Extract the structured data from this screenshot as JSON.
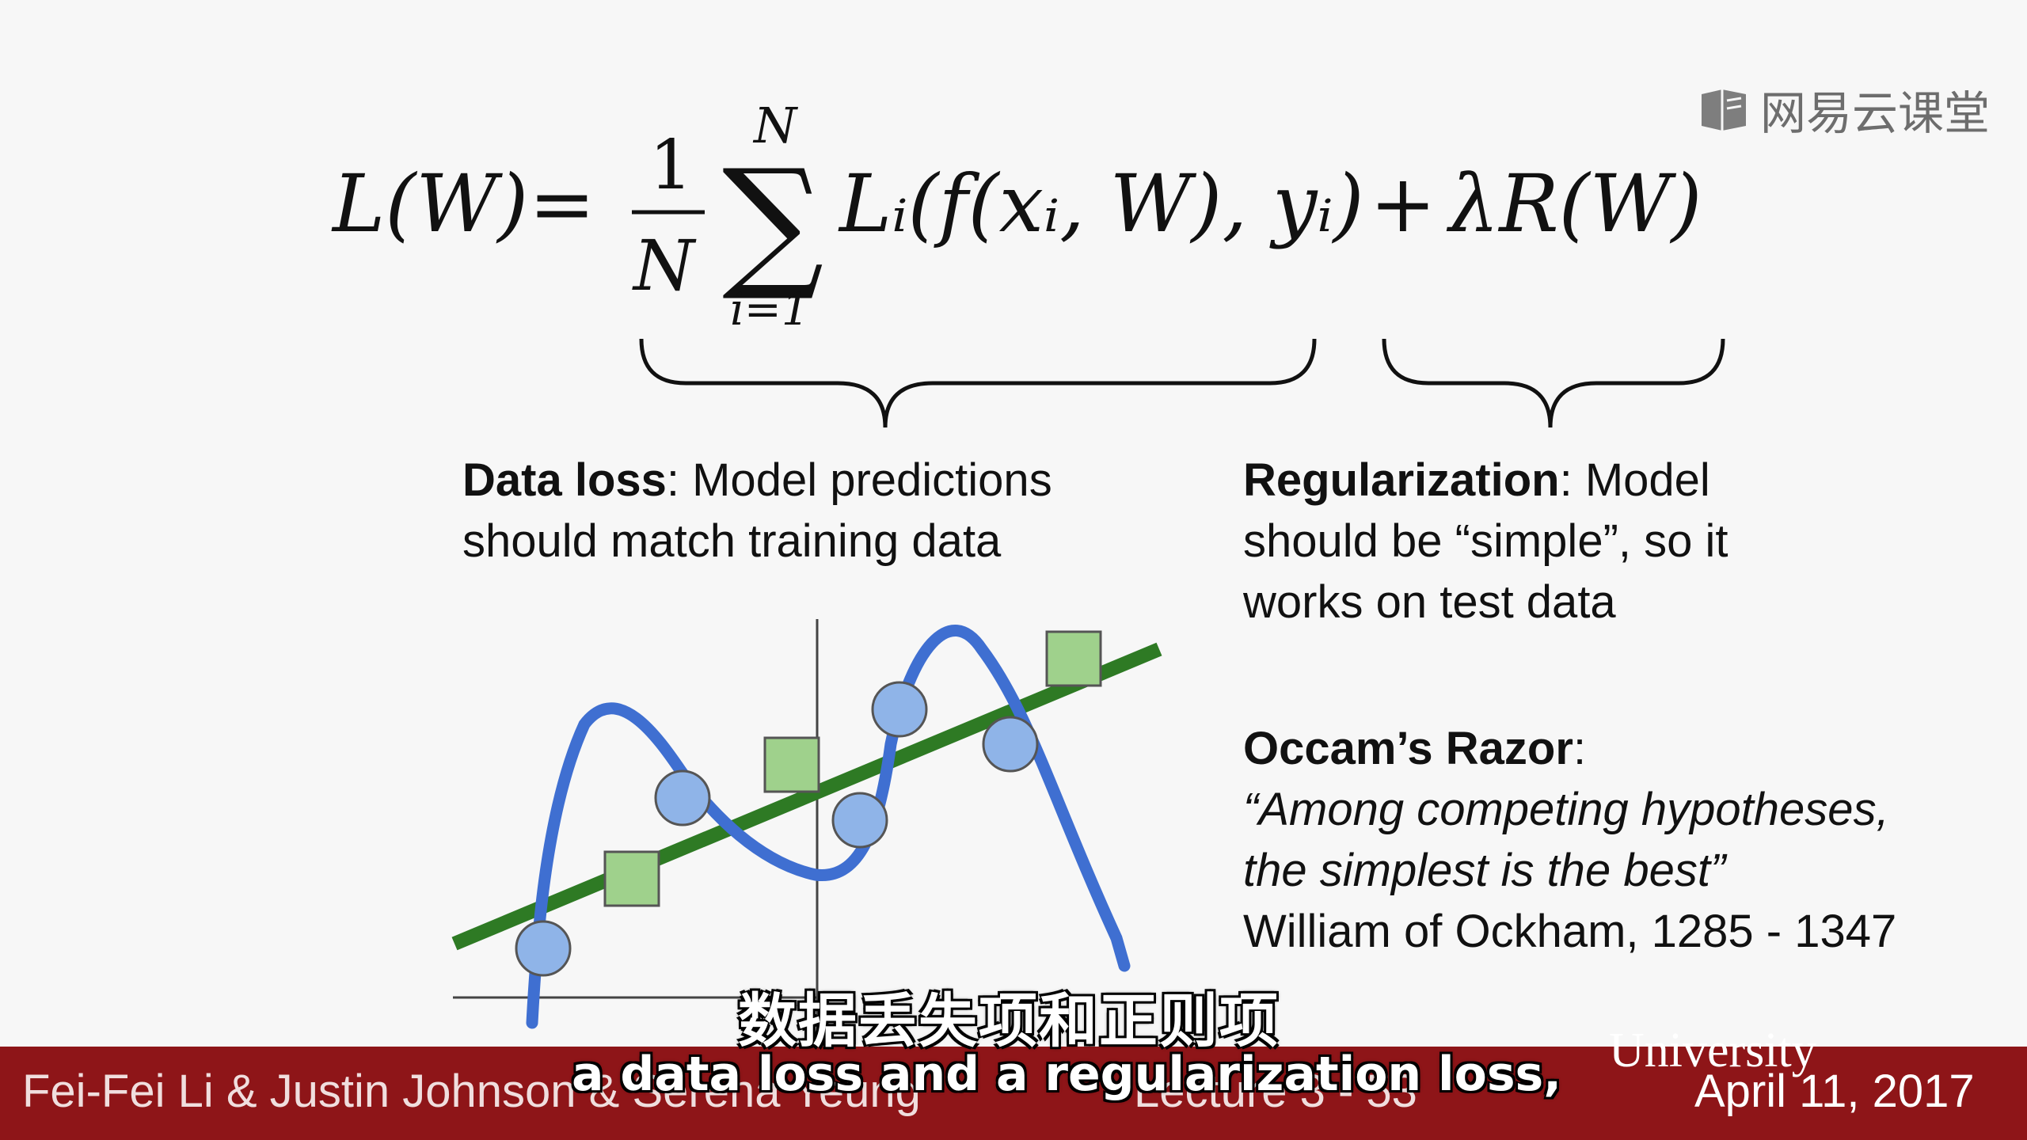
{
  "watermark": {
    "text": "网易云课堂",
    "icon": "book-icon"
  },
  "formula": {
    "lhs": "L(W)",
    "equals": "=",
    "numerator": "1",
    "denominator": "N",
    "sum_upper": "N",
    "sum_lower": "i=1",
    "sum_symbol": "∑",
    "term": "Lᵢ(f(xᵢ, W), yᵢ)",
    "plus": "+",
    "reg_term": "λR(W)"
  },
  "data_loss": {
    "title": "Data loss",
    "line1_rest": ": Model predictions",
    "line2": "should match training data"
  },
  "regularization": {
    "title": "Regularization",
    "line1_rest": ": Model",
    "line2": "should be “simple”, so it",
    "line3": "works on test data"
  },
  "occam": {
    "title": "Occam’s Razor",
    "colon": ":",
    "quote1": "“Among competing hypotheses,",
    "quote2": "the simplest is the best”",
    "attribution": "William of Ockham, 1285 - 1347"
  },
  "footer": {
    "author": "Fei-Fei Li & Justin Johnson & Serena Yeung",
    "lecture": "Lecture 3 - 53",
    "university": "University",
    "date": "April 11, 2017"
  },
  "subtitles": {
    "chinese": "数据丢失项和正则项",
    "english": "a data loss and a regularization loss,"
  },
  "colors": {
    "footer_bg": "#8e1518",
    "blue_curve": "#3f6fd1",
    "green_line": "#2e7a24",
    "circle_fill": "#8fb4e8",
    "square_fill": "#9fd18c"
  }
}
